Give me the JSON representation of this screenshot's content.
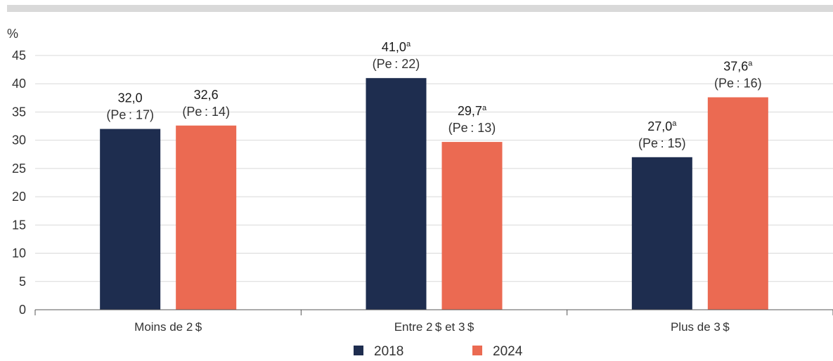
{
  "chart_data": {
    "type": "bar",
    "ylabel": "%",
    "ylim": [
      0,
      45
    ],
    "yticks": [
      0,
      5,
      10,
      15,
      20,
      25,
      30,
      35,
      40,
      45
    ],
    "grid": true,
    "legend_position": "bottom-center",
    "categories": [
      "Moins de 2 $",
      "Entre 2 $ et 3 $",
      "Plus de 3 $"
    ],
    "series": [
      {
        "name": "2018",
        "color": "#1e2d4f",
        "values": [
          32.0,
          41.0,
          27.0
        ],
        "labels": [
          "32,0",
          "41,0",
          "27,0"
        ],
        "superscripts": [
          "",
          "a",
          "a"
        ],
        "pe": [
          "(Pe : 17)",
          "(Pe : 22)",
          "(Pe : 15)"
        ]
      },
      {
        "name": "2024",
        "color": "#eb6a52",
        "values": [
          32.6,
          29.7,
          37.6
        ],
        "labels": [
          "32,6",
          "29,7",
          "37,6"
        ],
        "superscripts": [
          "",
          "a",
          "a"
        ],
        "pe": [
          "(Pe : 14)",
          "(Pe : 13)",
          "(Pe : 16)"
        ]
      }
    ]
  }
}
